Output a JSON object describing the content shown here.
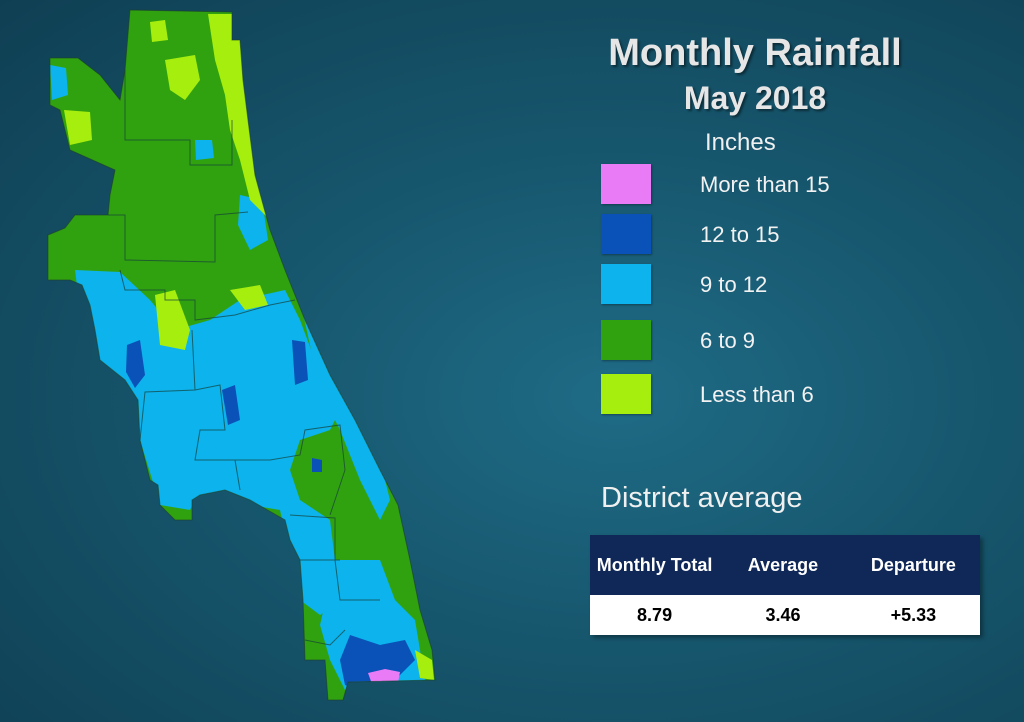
{
  "title": "Monthly Rainfall",
  "subtitle": "May 2018",
  "legend": {
    "title": "Inches",
    "items": [
      {
        "label": "More than 15",
        "color": "#e97cf6"
      },
      {
        "label": "12 to 15",
        "color": "#0b52b8"
      },
      {
        "label": "9 to 12",
        "color": "#0db3ec"
      },
      {
        "label": "6 to 9",
        "color": "#31a20f"
      },
      {
        "label": "Less than 6",
        "color": "#a6ee0e"
      }
    ]
  },
  "district_average": {
    "title": "District average",
    "headers": {
      "monthly_total": "Monthly Total",
      "average": "Average",
      "departure": "Departure"
    },
    "values": {
      "monthly_total": "8.79",
      "average": "3.46",
      "departure": "+5.33"
    }
  }
}
